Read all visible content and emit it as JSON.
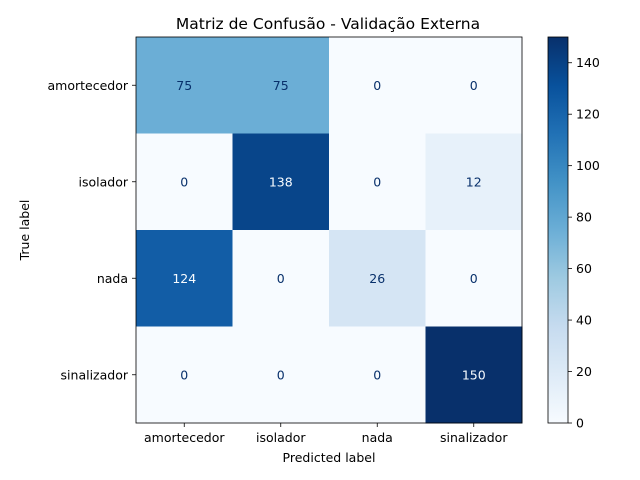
{
  "chart_data": {
    "type": "heatmap",
    "title": "Matriz de Confusão - Validação Externa",
    "xlabel": "Predicted label",
    "ylabel": "True label",
    "x_categories": [
      "amortecedor",
      "isolador",
      "nada",
      "sinalizador"
    ],
    "y_categories": [
      "amortecedor",
      "isolador",
      "nada",
      "sinalizador"
    ],
    "values": [
      [
        75,
        75,
        0,
        0
      ],
      [
        0,
        138,
        0,
        12
      ],
      [
        124,
        0,
        26,
        0
      ],
      [
        0,
        0,
        0,
        150
      ]
    ],
    "colormap": "Blues",
    "colorbar": {
      "range": [
        0,
        150
      ],
      "ticks": [
        0,
        20,
        40,
        60,
        80,
        100,
        120,
        140
      ]
    },
    "grid": false
  }
}
